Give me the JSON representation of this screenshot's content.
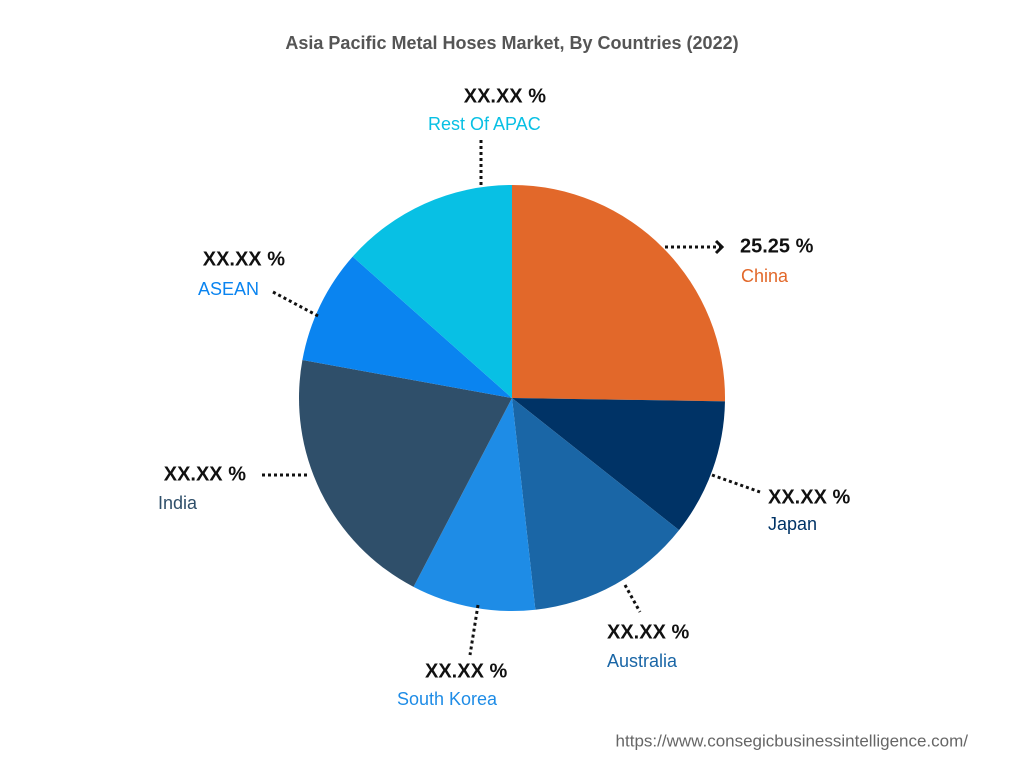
{
  "chart_data": {
    "type": "pie",
    "title": "Asia Pacific Metal Hoses Market, By Countries (2022)",
    "categories": [
      "China",
      "Japan",
      "Australia",
      "South Korea",
      "India",
      "ASEAN",
      "Rest Of APAC"
    ],
    "values": [
      25.25,
      10.4,
      12.6,
      9.4,
      20.2,
      8.7,
      13.45
    ],
    "value_labels": [
      "25.25 %",
      "XX.XX %",
      "XX.XX %",
      "XX.XX %",
      "XX.XX %",
      "XX.XX %",
      "XX.XX %"
    ],
    "colors": [
      "#e2682a",
      "#003366",
      "#1a66a6",
      "#1e8ce6",
      "#2f4f6a",
      "#0a84f0",
      "#08c0e4"
    ],
    "source": "https://www.consegicbusinessintelligence.com/"
  }
}
